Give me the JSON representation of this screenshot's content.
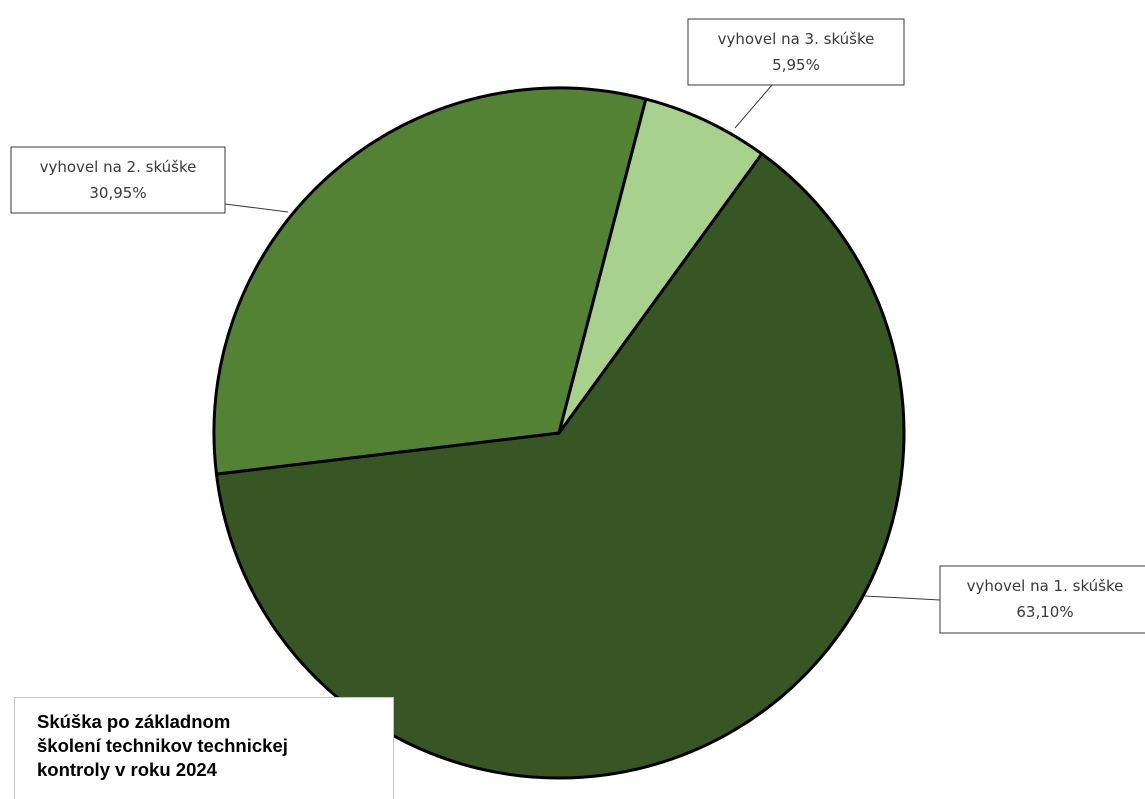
{
  "chart_data": {
    "type": "pie",
    "title": "Skúška po základnom\nškolení technikov technickej\nkontroly v roku 2024",
    "categories": [
      "vyhovel na 1. skúške",
      "vyhovel na 2. skúške",
      "vyhovel na 3. skúške"
    ],
    "values": [
      63.1,
      30.95,
      5.95
    ],
    "value_labels": [
      "63,10%",
      "30,95%",
      "5,95%"
    ],
    "colors": [
      "#375623",
      "#548235",
      "#a9d18e"
    ],
    "legend": "none",
    "data_labels": "callouts with category name and percentage"
  }
}
